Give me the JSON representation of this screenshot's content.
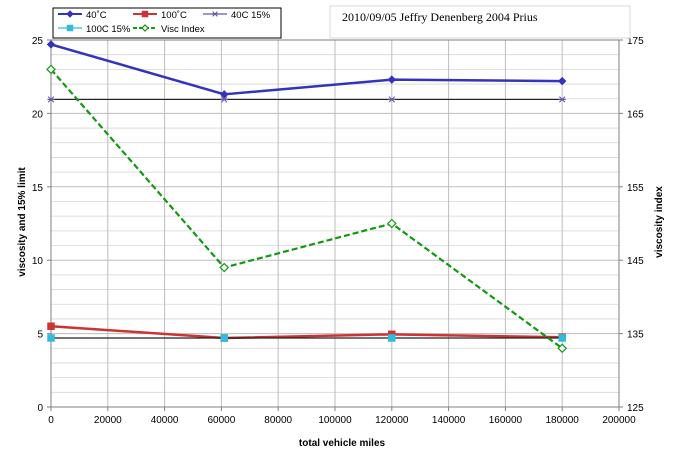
{
  "chart_data": {
    "type": "line",
    "title": "2010/09/05 Jeffry Denenberg 2004 Prius",
    "xlabel": "total vehicle miles",
    "ylabel": "viscosity and 15% limit",
    "y2label": "viscosity index",
    "xlim": [
      0,
      200000
    ],
    "ylim": [
      0,
      25
    ],
    "y2lim": [
      125,
      175
    ],
    "x_ticks": [
      "0",
      "20000",
      "40000",
      "60000",
      "80000",
      "100000",
      "120000",
      "140000",
      "160000",
      "180000",
      "200000"
    ],
    "y_ticks": [
      "0",
      "5",
      "10",
      "15",
      "20",
      "25"
    ],
    "y2_ticks": [
      "125",
      "135",
      "145",
      "155",
      "165",
      "175"
    ],
    "grid": true,
    "legend_position": "top-left",
    "series": [
      {
        "name": "40˚C",
        "axis": "left",
        "color": "#3333bb",
        "marker": "diamond",
        "dashed": false,
        "x": [
          0,
          61000,
          120000,
          180000
        ],
        "y": [
          24.7,
          21.3,
          22.3,
          22.2
        ]
      },
      {
        "name": "100˚C",
        "axis": "left",
        "color": "#cc3333",
        "marker": "square",
        "dashed": false,
        "x": [
          0,
          61000,
          120000,
          180000
        ],
        "y": [
          5.5,
          4.7,
          4.95,
          4.75
        ]
      },
      {
        "name": "40C 15%",
        "axis": "left",
        "color": "#6655aa",
        "marker": "star",
        "dashed": false,
        "x": [
          0,
          61000,
          120000,
          180000
        ],
        "y": [
          20.95,
          20.95,
          20.95,
          20.95
        ]
      },
      {
        "name": "100C 15%",
        "axis": "left",
        "color": "#33bbdd",
        "marker": "square",
        "dashed": false,
        "x": [
          0,
          61000,
          120000,
          180000
        ],
        "y": [
          4.7,
          4.7,
          4.7,
          4.7
        ]
      },
      {
        "name": "Visc Index",
        "axis": "right",
        "color": "#119911",
        "marker": "diamond-open",
        "dashed": true,
        "x": [
          0,
          61000,
          120000,
          180000
        ],
        "y": [
          171,
          144,
          150,
          133
        ]
      }
    ]
  }
}
